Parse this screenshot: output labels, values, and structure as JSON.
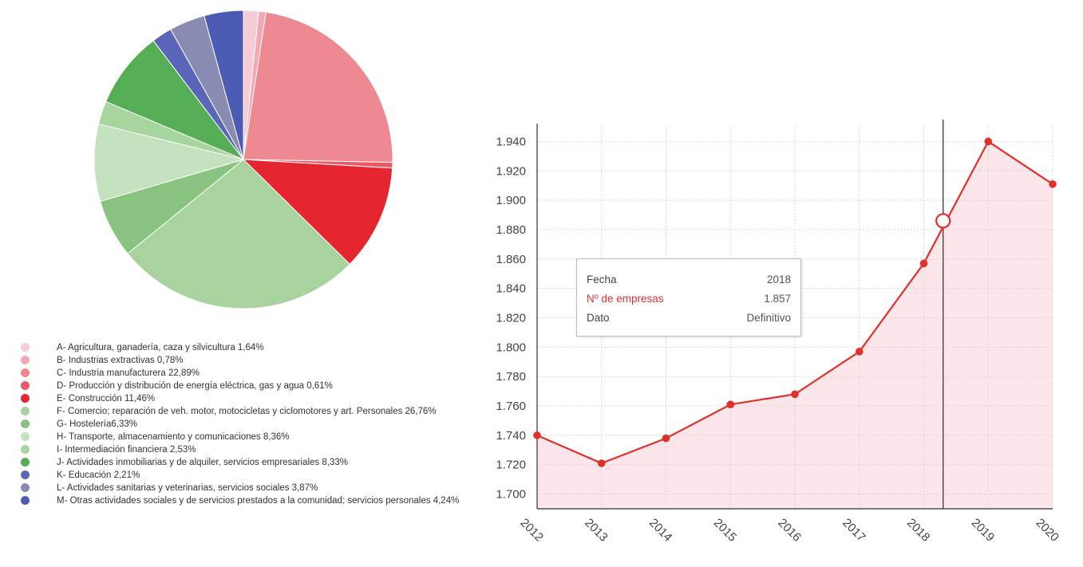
{
  "chart_data": [
    {
      "type": "pie",
      "series": [
        {
          "labels": [
            "A- Agricultura, ganadería, caza y silvicultura 1,64%",
            "B- Industrias extractivas 0,78%",
            "C- Industria manufacturera 22,89%",
            "D- Producción y distribución de energía eléctrica, gas y agua 0,61%",
            "E- Construcción 11,46%",
            "F- Comercio; reparación de veh. motor, motocicletas y ciclomotores y art. Personales 26,76%",
            "G- Hostelería6,33%",
            "H- Transporte, almacenamiento y comunicaciones 8,36%",
            "I- Intermediación financiera 2,53%",
            "J- Actividades inmobiliarias y de alquiler, servicios empresariales 8,33%",
            "K- Educación 2,21%",
            "L- Actividades sanitarias y veterinarias, servicios sociales 3,87%",
            "M- Otras actividades sociales y de servicios prestados a la comunidad; servicios personales 4,24%"
          ],
          "values": [
            1.64,
            0.78,
            22.89,
            0.61,
            11.46,
            26.76,
            6.33,
            8.36,
            2.53,
            8.33,
            2.21,
            3.87,
            4.24
          ],
          "colors": [
            "#f7ccd6",
            "#f4a8b3",
            "#ee8891",
            "#e85a66",
            "#e5262f",
            "#a8d39f",
            "#88c480",
            "#c4e2bd",
            "#a6d59d",
            "#55ad55",
            "#5a66b8",
            "#8a8bb2",
            "#4c5bb4"
          ]
        }
      ],
      "legend_position": "bottom"
    },
    {
      "type": "line",
      "x": [
        "2012",
        "2013",
        "2014",
        "2015",
        "2016",
        "2017",
        "2018",
        "2019",
        "2020"
      ],
      "series": [
        {
          "name": "Nº de empresas",
          "values": [
            1740,
            1721,
            1738,
            1761,
            1768,
            1797,
            1857,
            1940,
            1911
          ],
          "color": "#e0302c"
        }
      ],
      "y_ticks": [
        "1.700",
        "1.720",
        "1.740",
        "1.760",
        "1.780",
        "1.800",
        "1.820",
        "1.840",
        "1.860",
        "1.880",
        "1.900",
        "1.920",
        "1.940"
      ],
      "ylim": [
        1690,
        1950
      ],
      "grid": true,
      "area_fill": "#fce6e9",
      "hover": {
        "x": 2018.3,
        "y": 1886
      },
      "tooltip": {
        "rows": [
          {
            "key": "Fecha",
            "value": "2018"
          },
          {
            "key": "Nº de empresas",
            "value": "1.857"
          },
          {
            "key": "Dato",
            "value": "Definitivo"
          }
        ]
      }
    }
  ]
}
